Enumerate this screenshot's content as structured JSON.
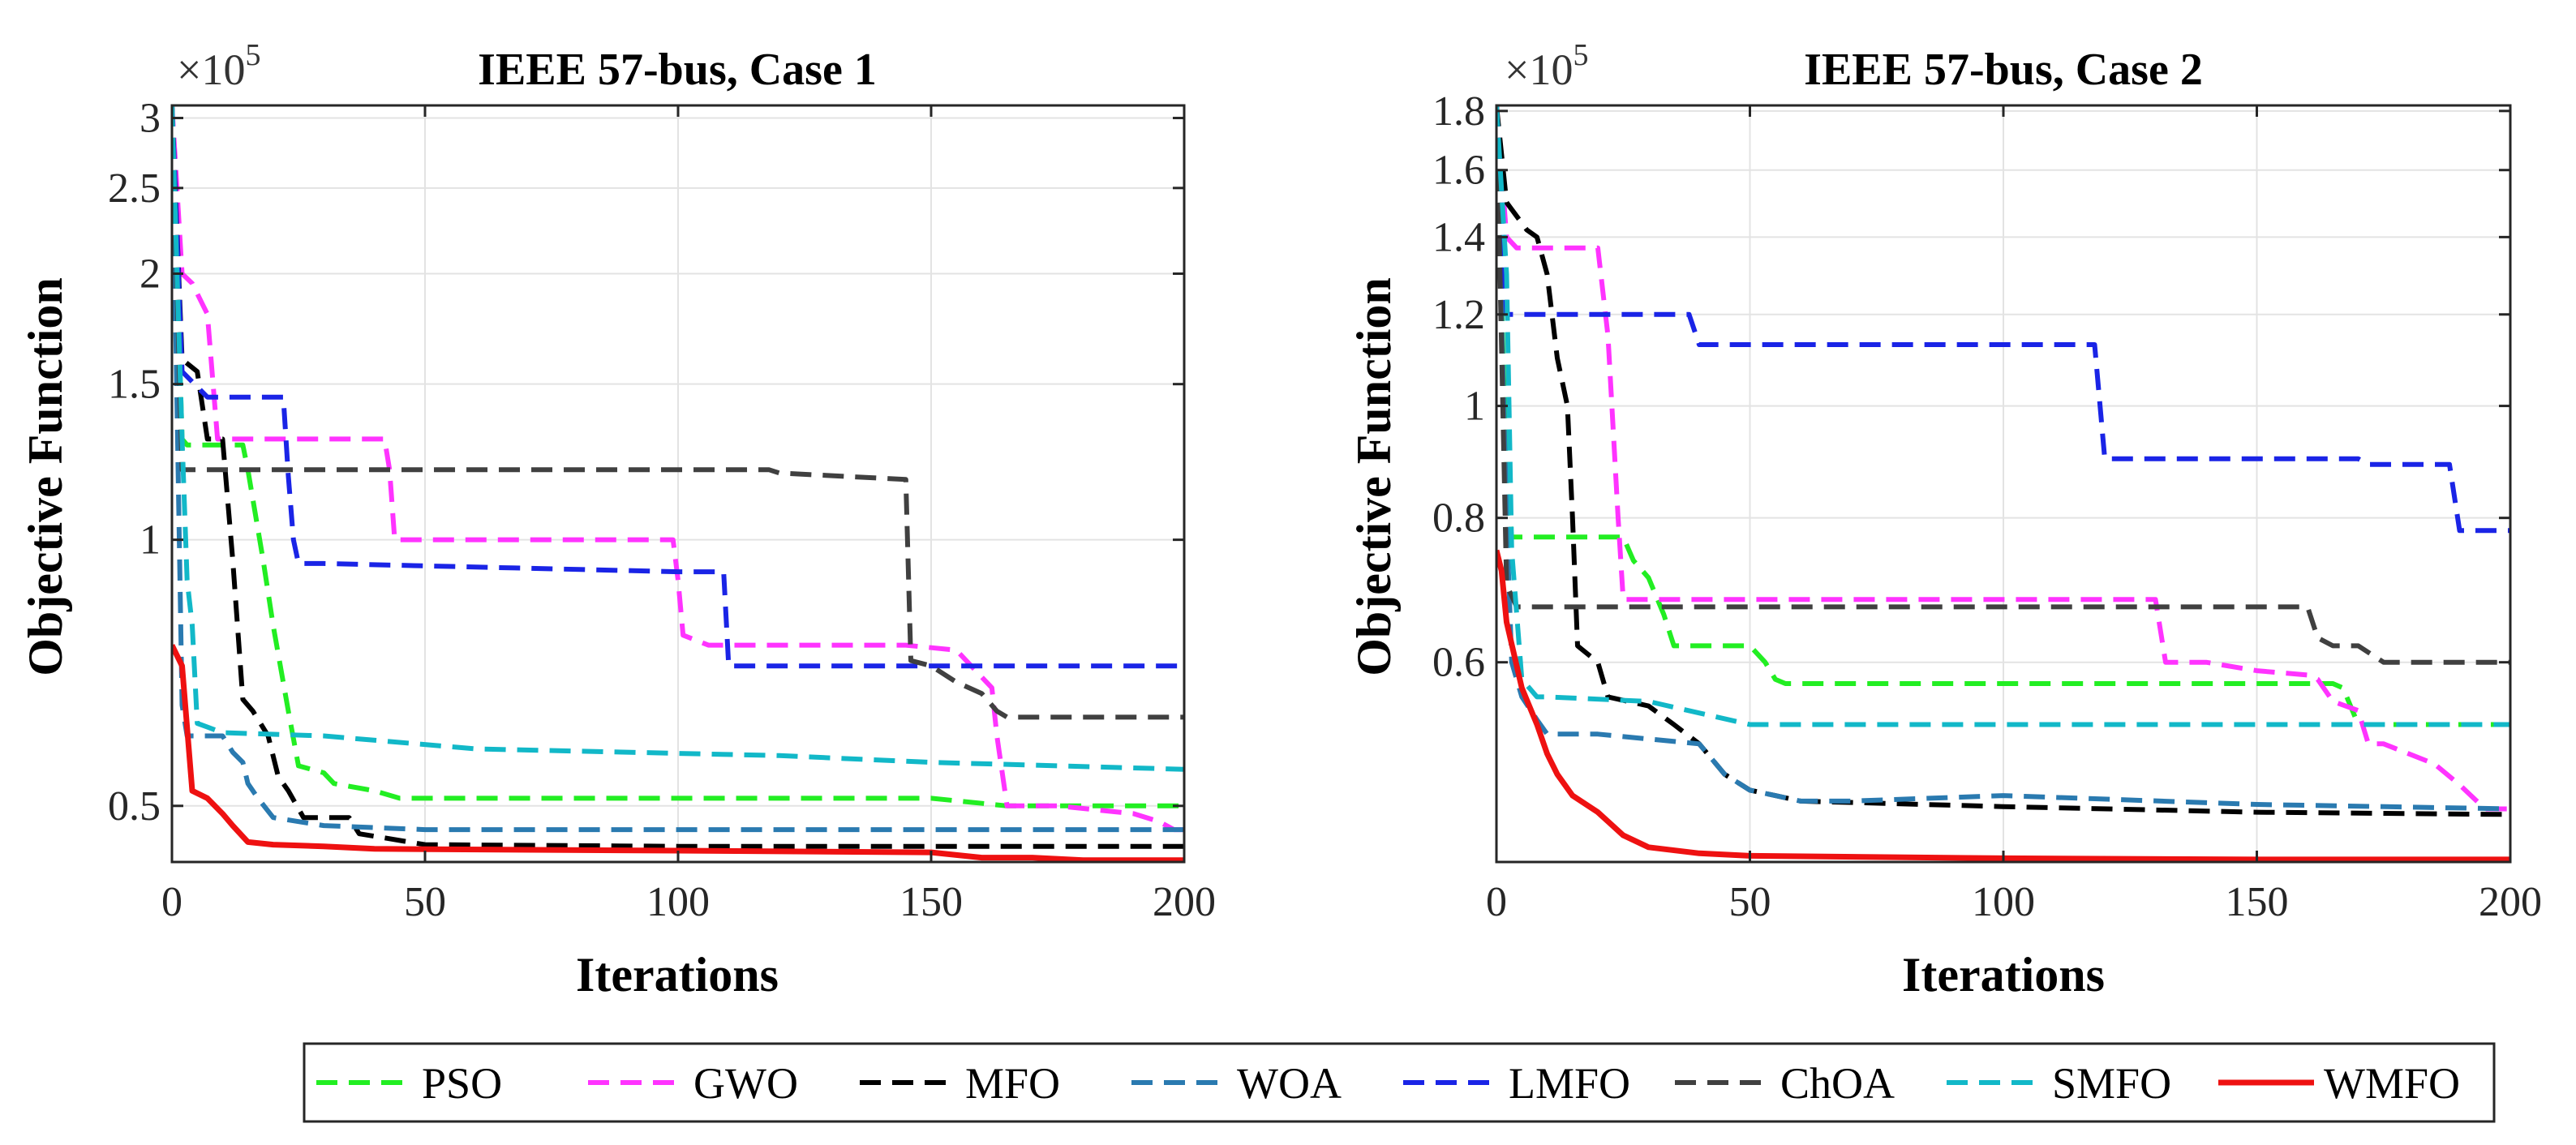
{
  "chart_data": [
    {
      "type": "line",
      "title": "IEEE 57-bus, Case 1",
      "xlabel": "Iterations",
      "ylabel": "Objective Function",
      "y_multiplier": "×10",
      "y_multiplier_exp": "5",
      "y_scale": "log",
      "xlim": [
        0,
        200
      ],
      "ylim": [
        0.432,
        3.1
      ],
      "xticks": [
        0,
        50,
        100,
        150,
        200
      ],
      "yticks": [
        0.5,
        1,
        1.5,
        2,
        2.5,
        3
      ],
      "grid": true,
      "series": [
        {
          "name": "PSO",
          "x": [
            0,
            2,
            3,
            14,
            15,
            18,
            20,
            23,
            25,
            30,
            32,
            40,
            45,
            60,
            100,
            150,
            165,
            200
          ],
          "y": [
            3.1,
            1.3,
            1.28,
            1.28,
            1.2,
            0.95,
            0.8,
            0.64,
            0.555,
            0.545,
            0.53,
            0.52,
            0.51,
            0.51,
            0.51,
            0.51,
            0.5,
            0.5
          ]
        },
        {
          "name": "GWO",
          "x": [
            0,
            2,
            4,
            7,
            9,
            42,
            43,
            44,
            99,
            100,
            101,
            106,
            145,
            155,
            162,
            163,
            165,
            175,
            190,
            195,
            198,
            200
          ],
          "y": [
            3.1,
            2.0,
            1.95,
            1.8,
            1.3,
            1.3,
            1.2,
            1.0,
            1.0,
            0.9,
            0.78,
            0.76,
            0.76,
            0.75,
            0.68,
            0.6,
            0.5,
            0.5,
            0.49,
            0.48,
            0.47,
            0.47
          ]
        },
        {
          "name": "MFO",
          "x": [
            0,
            2,
            5,
            7,
            10,
            12,
            14,
            16,
            19,
            21,
            23,
            26,
            35,
            37,
            40,
            50,
            100,
            200
          ],
          "y": [
            3.1,
            1.6,
            1.55,
            1.3,
            1.3,
            0.95,
            0.66,
            0.64,
            0.6,
            0.54,
            0.52,
            0.485,
            0.485,
            0.465,
            0.462,
            0.452,
            0.45,
            0.45
          ]
        },
        {
          "name": "WOA",
          "x": [
            0,
            2,
            3,
            10,
            12,
            14,
            15,
            17,
            20,
            30,
            50,
            200
          ],
          "y": [
            3.1,
            0.65,
            0.6,
            0.6,
            0.575,
            0.56,
            0.53,
            0.51,
            0.485,
            0.475,
            0.47,
            0.47
          ]
        },
        {
          "name": "LMFO",
          "x": [
            0,
            2,
            7,
            22,
            23,
            24,
            25,
            30,
            100,
            109,
            110,
            145,
            200
          ],
          "y": [
            3.1,
            1.55,
            1.45,
            1.45,
            1.18,
            1.0,
            0.94,
            0.94,
            0.92,
            0.92,
            0.72,
            0.72,
            0.72
          ]
        },
        {
          "name": "ChOA",
          "x": [
            0,
            2,
            3,
            118,
            120,
            145,
            146,
            150,
            155,
            160,
            163,
            165,
            200
          ],
          "y": [
            3.1,
            1.2,
            1.2,
            1.2,
            1.19,
            1.17,
            0.73,
            0.72,
            0.69,
            0.67,
            0.64,
            0.63,
            0.63
          ]
        },
        {
          "name": "SMFO",
          "x": [
            0,
            2,
            3,
            4,
            5,
            10,
            30,
            60,
            120,
            150,
            200
          ],
          "y": [
            3.1,
            1.3,
            0.9,
            0.8,
            0.62,
            0.605,
            0.6,
            0.58,
            0.57,
            0.56,
            0.55
          ]
        },
        {
          "name": "WMFO",
          "x": [
            0,
            2,
            4,
            7,
            10,
            12,
            15,
            20,
            30,
            40,
            100,
            150,
            160,
            170,
            180,
            200
          ],
          "y": [
            0.76,
            0.72,
            0.52,
            0.51,
            0.49,
            0.475,
            0.455,
            0.452,
            0.45,
            0.447,
            0.445,
            0.443,
            0.437,
            0.437,
            0.434,
            0.434
          ]
        }
      ]
    },
    {
      "type": "line",
      "title": "IEEE 57-bus, Case 2",
      "xlabel": "Iterations",
      "ylabel": "Objective Function",
      "y_multiplier": "×10",
      "y_multiplier_exp": "5",
      "y_scale": "log",
      "xlim": [
        0,
        200
      ],
      "ylim": [
        0.403,
        1.82
      ],
      "xticks": [
        0,
        50,
        100,
        150,
        200
      ],
      "yticks": [
        0.6,
        0.8,
        1,
        1.2,
        1.4,
        1.6,
        1.8
      ],
      "grid": true,
      "series": [
        {
          "name": "PSO",
          "x": [
            0,
            2,
            3,
            25,
            27,
            30,
            33,
            35,
            50,
            53,
            55,
            57,
            150,
            165,
            167,
            170,
            200
          ],
          "y": [
            1.82,
            0.85,
            0.77,
            0.77,
            0.735,
            0.71,
            0.66,
            0.62,
            0.62,
            0.6,
            0.58,
            0.575,
            0.575,
            0.575,
            0.57,
            0.53,
            0.53
          ]
        },
        {
          "name": "GWO",
          "x": [
            0,
            2,
            4,
            20,
            22,
            24,
            25,
            130,
            132,
            140,
            150,
            160,
            162,
            165,
            170,
            172,
            175,
            185,
            190,
            195,
            200
          ],
          "y": [
            1.82,
            1.4,
            1.37,
            1.37,
            1.15,
            0.8,
            0.68,
            0.68,
            0.6,
            0.6,
            0.59,
            0.585,
            0.58,
            0.555,
            0.545,
            0.51,
            0.51,
            0.49,
            0.47,
            0.448,
            0.448
          ]
        },
        {
          "name": "MFO",
          "x": [
            0,
            2,
            6,
            8,
            10,
            12,
            14,
            15,
            16,
            20,
            22,
            30,
            35,
            40,
            45,
            50,
            55,
            60,
            100,
            150,
            200
          ],
          "y": [
            1.82,
            1.5,
            1.42,
            1.4,
            1.3,
            1.1,
            1.0,
            0.8,
            0.62,
            0.6,
            0.56,
            0.55,
            0.53,
            0.51,
            0.48,
            0.465,
            0.46,
            0.455,
            0.45,
            0.445,
            0.443
          ]
        },
        {
          "name": "WOA",
          "x": [
            0,
            2,
            3,
            5,
            8,
            10,
            20,
            40,
            45,
            50,
            55,
            60,
            70,
            100,
            150,
            200
          ],
          "y": [
            1.82,
            0.8,
            0.6,
            0.56,
            0.535,
            0.52,
            0.52,
            0.51,
            0.48,
            0.465,
            0.46,
            0.455,
            0.455,
            0.46,
            0.452,
            0.448
          ]
        },
        {
          "name": "LMFO",
          "x": [
            0,
            2,
            38,
            40,
            118,
            120,
            170,
            172,
            188,
            190,
            195,
            200
          ],
          "y": [
            1.82,
            1.2,
            1.2,
            1.13,
            1.13,
            0.9,
            0.9,
            0.89,
            0.89,
            0.78,
            0.78,
            0.78
          ]
        },
        {
          "name": "ChOA",
          "x": [
            0,
            2,
            4,
            160,
            162,
            165,
            170,
            175,
            200
          ],
          "y": [
            1.82,
            0.7,
            0.67,
            0.67,
            0.63,
            0.62,
            0.62,
            0.6,
            0.6
          ]
        },
        {
          "name": "SMFO",
          "x": [
            0,
            2,
            3,
            5,
            8,
            10,
            30,
            50,
            100,
            150,
            200
          ],
          "y": [
            1.82,
            1.3,
            0.75,
            0.58,
            0.56,
            0.56,
            0.555,
            0.53,
            0.53,
            0.53,
            0.53
          ]
        },
        {
          "name": "WMFO",
          "x": [
            0,
            1,
            2,
            5,
            8,
            10,
            12,
            15,
            20,
            25,
            30,
            40,
            50,
            100,
            150,
            200
          ],
          "y": [
            0.75,
            0.72,
            0.65,
            0.57,
            0.53,
            0.5,
            0.48,
            0.46,
            0.445,
            0.425,
            0.415,
            0.41,
            0.408,
            0.406,
            0.405,
            0.405
          ]
        }
      ]
    }
  ],
  "legend": {
    "placement": "bottom-center",
    "items": [
      {
        "name": "PSO",
        "color": "#22ee22",
        "style": "dashed"
      },
      {
        "name": "GWO",
        "color": "#ff33ff",
        "style": "dashed"
      },
      {
        "name": "MFO",
        "color": "#000000",
        "style": "dashed"
      },
      {
        "name": "WOA",
        "color": "#2a7ab0",
        "style": "dashed"
      },
      {
        "name": "LMFO",
        "color": "#1a24e6",
        "style": "dashed"
      },
      {
        "name": "ChOA",
        "color": "#404040",
        "style": "dashed"
      },
      {
        "name": "SMFO",
        "color": "#12b8c8",
        "style": "dashed"
      },
      {
        "name": "WMFO",
        "color": "#ee1111",
        "style": "solid"
      }
    ]
  }
}
